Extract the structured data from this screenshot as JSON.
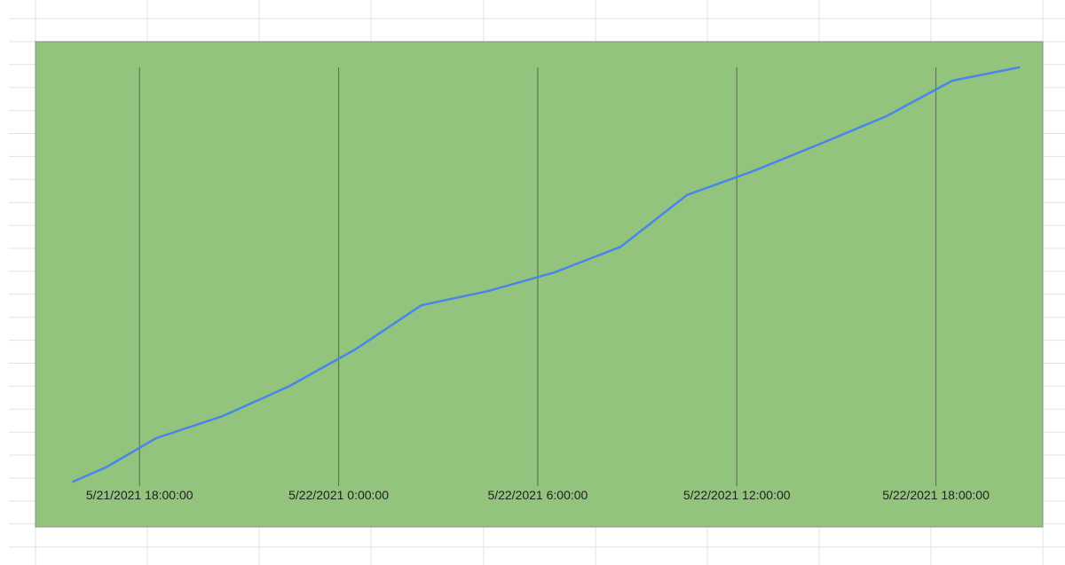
{
  "colors": {
    "chart_background": "#93c47d",
    "series_line": "#4a86e8",
    "gridline": "#5e7a53",
    "border": "#8a8a8a",
    "sheet_grid": "#e2e3e3"
  },
  "chart_data": {
    "type": "line",
    "title": "",
    "xlabel": "",
    "ylabel": "",
    "x_ticks": [
      "5/21/2021 18:00:00",
      "5/22/2021 0:00:00",
      "5/22/2021 6:00:00",
      "5/22/2021 12:00:00",
      "5/22/2021 18:00:00"
    ],
    "xlim": [
      "5/21/2021 15:40",
      "5/22/2021 20:30"
    ],
    "ylim": [
      0,
      100
    ],
    "y_axis_labels_visible": false,
    "vertical_gridlines": true,
    "horizontal_gridlines": false,
    "legend": "none",
    "series": [
      {
        "x": [
          "5/21/2021 16:00",
          "5/21/2021 17:00",
          "5/21/2021 18:30",
          "5/21/2021 20:30",
          "5/21/2021 22:30",
          "5/22/2021 0:30",
          "5/22/2021 2:30",
          "5/22/2021 4:30",
          "5/22/2021 6:30",
          "5/22/2021 8:30",
          "5/22/2021 10:30",
          "5/22/2021 12:30",
          "5/22/2021 14:30",
          "5/22/2021 16:30",
          "5/22/2021 18:30",
          "5/22/2021 20:30"
        ],
        "y": [
          0,
          3.5,
          10.5,
          15.8,
          23,
          31.9,
          42.6,
          46,
          50.5,
          56.7,
          69.2,
          75,
          81.5,
          88.2,
          96.8,
          100
        ]
      }
    ]
  }
}
